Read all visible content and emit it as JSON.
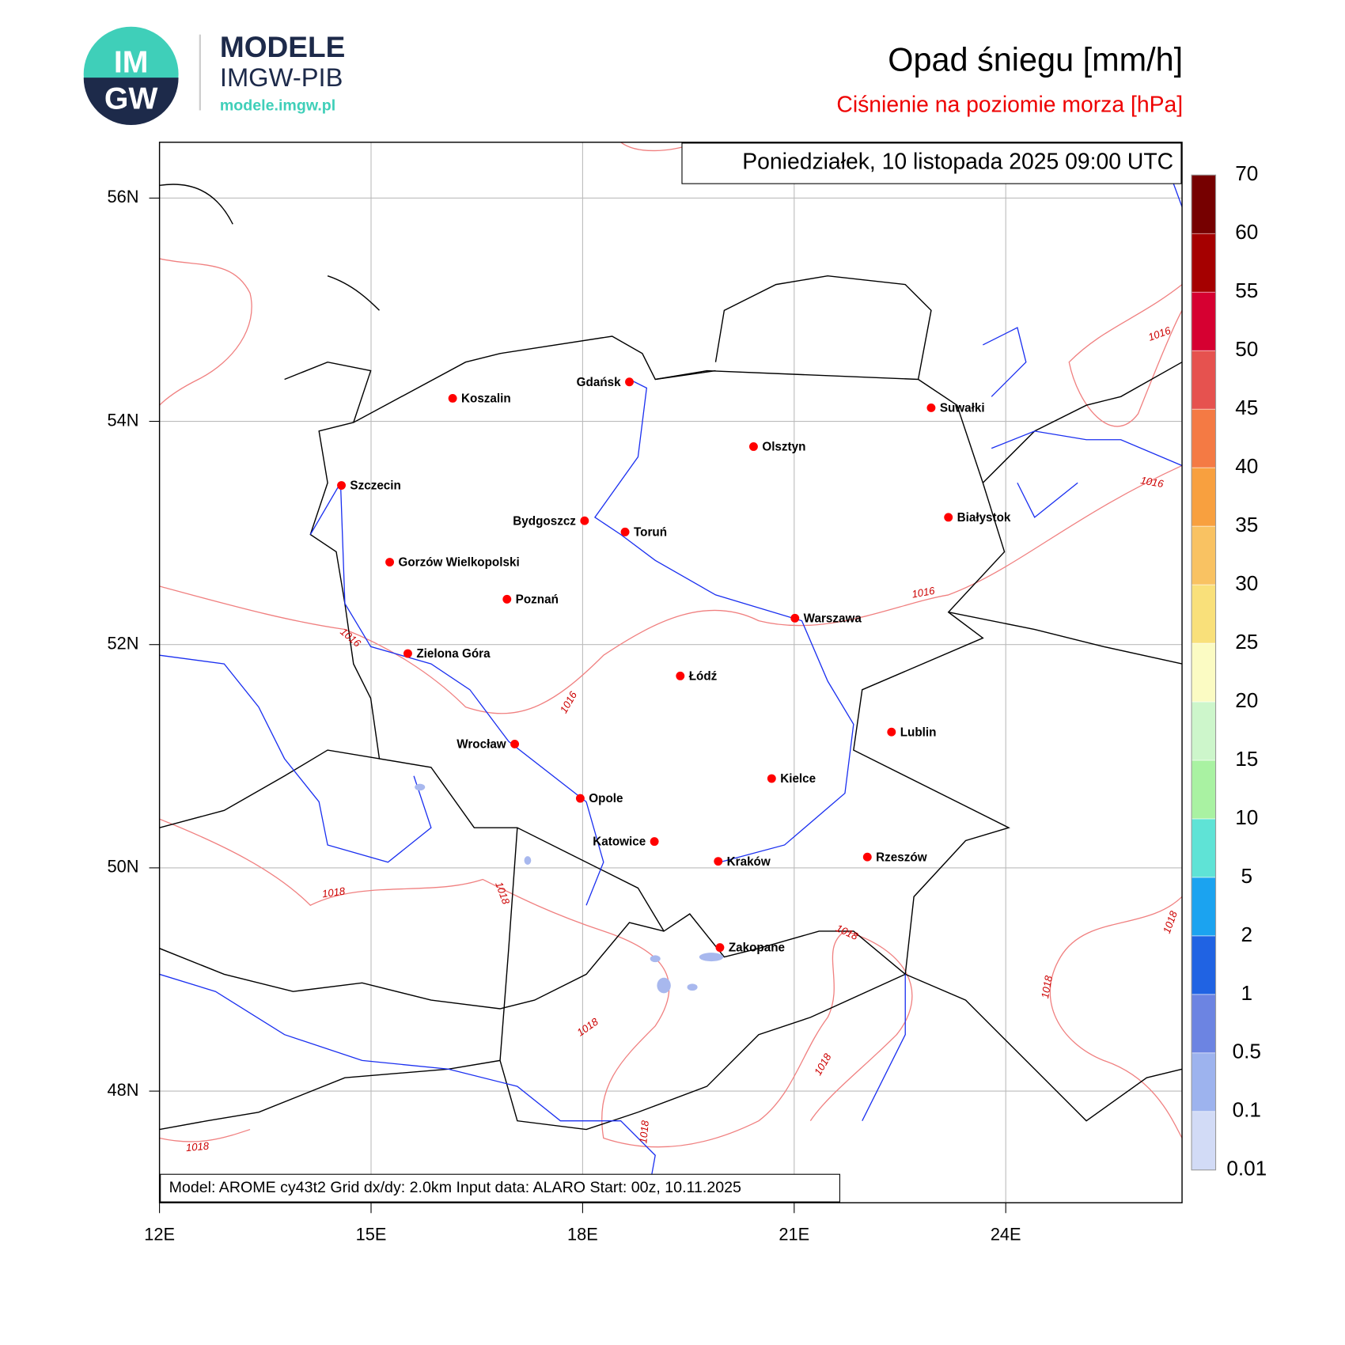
{
  "header": {
    "logo_text": [
      "IM",
      "GW"
    ],
    "brand": "MODELE",
    "org": "IMGW-PIB",
    "url": "modele.imgw.pl"
  },
  "map": {
    "title": "Opad śniegu [mm/h]",
    "subtitle": "Ciśnienie na poziomie morza [hPa]",
    "timestamp": "Poniedziałek, 10 listopada 2025 09:00 UTC",
    "footer": "Model: AROME cy43t2  Grid dx/dy: 2.0km  Input data: ALARO  Start: 00z, 10.11.2025",
    "lonlim": [
      12,
      26.5
    ],
    "latlim": [
      47,
      56.5
    ],
    "lon_ticks": [
      {
        "value": 12,
        "label": "12E"
      },
      {
        "value": 15,
        "label": "15E"
      },
      {
        "value": 18,
        "label": "18E"
      },
      {
        "value": 21,
        "label": "21E"
      },
      {
        "value": 24,
        "label": "24E"
      }
    ],
    "lat_ticks": [
      {
        "value": 48,
        "label": "48N"
      },
      {
        "value": 50,
        "label": "50N"
      },
      {
        "value": 52,
        "label": "52N"
      },
      {
        "value": 54,
        "label": "54N"
      },
      {
        "value": 56,
        "label": "56N"
      }
    ],
    "grid": true,
    "cities": [
      "Gdańsk",
      "Koszalin",
      "Suwałki",
      "Olsztyn",
      "Szczecin",
      "Bydgoszcz",
      "Toruń",
      "Białystok",
      "Gorzów Wielkopolski",
      "Poznań",
      "Warszawa",
      "Zielona Góra",
      "Łódź",
      "Lublin",
      "Wrocław",
      "Kielce",
      "Opole",
      "Katowice",
      "Rzeszów",
      "Kraków",
      "Zakopane"
    ],
    "contour_labels": [
      "1016",
      "1016",
      "1016",
      "1016",
      "1016",
      "1018",
      "1018",
      "1018",
      "1018",
      "1018",
      "1018",
      "1018",
      "1018",
      "1018"
    ]
  },
  "colorbar": {
    "levels": [
      0.01,
      0.1,
      0.5,
      1,
      2,
      5,
      10,
      15,
      20,
      25,
      30,
      35,
      40,
      45,
      50,
      55,
      60,
      70
    ],
    "colors": [
      "#d2dbf6",
      "#9db3ee",
      "#6c84e2",
      "#2063e3",
      "#1ba3f0",
      "#5fe3d6",
      "#a9f2a2",
      "#cdf6cb",
      "#fbfbc3",
      "#f9e07a",
      "#f9c262",
      "#f8a03f",
      "#f47a44",
      "#e6524f",
      "#d60031",
      "#a50000",
      "#760000"
    ]
  }
}
